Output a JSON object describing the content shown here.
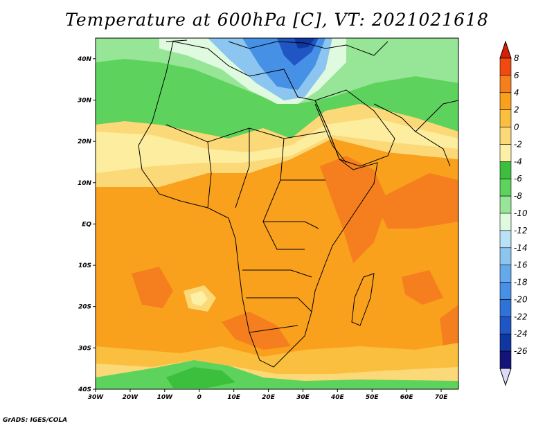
{
  "title": "Temperature at 600hPa [C], VT: 2021021618",
  "footer": "GrADS: IGES/COLA",
  "map": {
    "lon_range": [
      -30,
      75
    ],
    "lat_range": [
      -40,
      45
    ],
    "x_ticks": [
      {
        "value": -30,
        "label": "30W"
      },
      {
        "value": -20,
        "label": "20W"
      },
      {
        "value": -10,
        "label": "10W"
      },
      {
        "value": 0,
        "label": "0"
      },
      {
        "value": 10,
        "label": "10E"
      },
      {
        "value": 20,
        "label": "20E"
      },
      {
        "value": 30,
        "label": "30E"
      },
      {
        "value": 40,
        "label": "40E"
      },
      {
        "value": 50,
        "label": "50E"
      },
      {
        "value": 60,
        "label": "60E"
      },
      {
        "value": 70,
        "label": "70E"
      }
    ],
    "y_ticks": [
      {
        "value": 40,
        "label": "40N"
      },
      {
        "value": 30,
        "label": "30N"
      },
      {
        "value": 20,
        "label": "20N"
      },
      {
        "value": 10,
        "label": "10N"
      },
      {
        "value": 0,
        "label": "EQ"
      },
      {
        "value": -10,
        "label": "10S"
      },
      {
        "value": -20,
        "label": "20S"
      },
      {
        "value": -30,
        "label": "30S"
      },
      {
        "value": -40,
        "label": "40S"
      }
    ]
  },
  "colorbar": {
    "levels": [
      "8",
      "6",
      "4",
      "2",
      "0",
      "-2",
      "-4",
      "-6",
      "-8",
      "-10",
      "-12",
      "-14",
      "-16",
      "-18",
      "-20",
      "-22",
      "-24",
      "-26"
    ],
    "colors": [
      "#d81e05",
      "#f04a0f",
      "#f57f1e",
      "#f9a01c",
      "#fbbf3f",
      "#fcd978",
      "#fdf0a6",
      "#3cbf3c",
      "#5dd35d",
      "#97e697",
      "#dffadf",
      "#b9e2f6",
      "#8cc6f0",
      "#64a9ec",
      "#4690e6",
      "#2f73d9",
      "#1f56c4",
      "#0f37a0",
      "#13137a",
      "#dcdcf8"
    ]
  }
}
